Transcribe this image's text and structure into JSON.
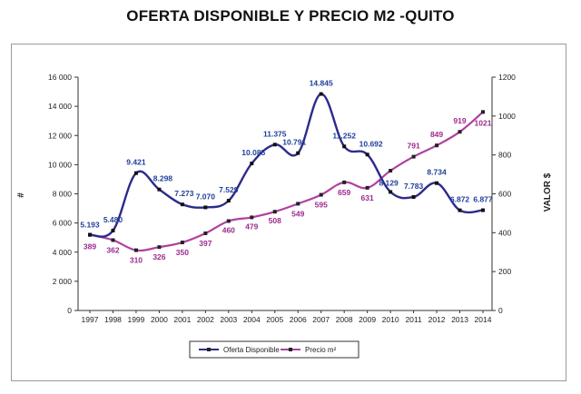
{
  "chart_data": {
    "type": "line",
    "title": "OFERTA DISPONIBLE Y PRECIO M2 -QUITO",
    "categories": [
      "1997",
      "1998",
      "1999",
      "2000",
      "2001",
      "2002",
      "2003",
      "2004",
      "2005",
      "2006",
      "2007",
      "2008",
      "2009",
      "2010",
      "2011",
      "2012",
      "2013",
      "2014"
    ],
    "xlabel": "",
    "ylabel": "#",
    "y2label": "VALOR $",
    "ylim": [
      0,
      16000
    ],
    "y2lim": [
      0,
      1200
    ],
    "yticks": [
      "0",
      "2 000",
      "4 000",
      "6 000",
      "8 000",
      "10 000",
      "12 000",
      "14 000",
      "16 000"
    ],
    "y2ticks": [
      "0",
      "200",
      "400",
      "600",
      "800",
      "1000",
      "1200"
    ],
    "series": [
      {
        "name": "Oferta Disponible",
        "axis": "left",
        "color": "#2b2b8c",
        "values": [
          5193,
          5480,
          9421,
          8298,
          7273,
          7070,
          7529,
          10085,
          11375,
          10791,
          14845,
          11252,
          10692,
          8129,
          7783,
          8734,
          6872,
          6877
        ],
        "labels": [
          "5.193",
          "5.480",
          "9.421",
          "8.298",
          "7.273",
          "7.070",
          "7.529",
          "10.085",
          "11.375",
          "10.791",
          "14.845",
          "11.252",
          "10.692",
          "8.129",
          "7.783",
          "8.734",
          "6.872",
          "6.877"
        ]
      },
      {
        "name": "Precio m²",
        "axis": "right",
        "color": "#b0409e",
        "values": [
          389,
          362,
          310,
          326,
          350,
          397,
          460,
          479,
          508,
          549,
          595,
          659,
          631,
          719,
          791,
          849,
          919,
          1021
        ],
        "labels": [
          "389",
          "362",
          "310",
          "326",
          "350",
          "397",
          "460",
          "479",
          "508",
          "549",
          "595",
          "659",
          "631",
          "",
          "791",
          "849",
          "919",
          "1021"
        ]
      }
    ],
    "legend": [
      "Oferta Disponible",
      "Precio m²"
    ],
    "legend_position": "bottom",
    "grid": false
  }
}
